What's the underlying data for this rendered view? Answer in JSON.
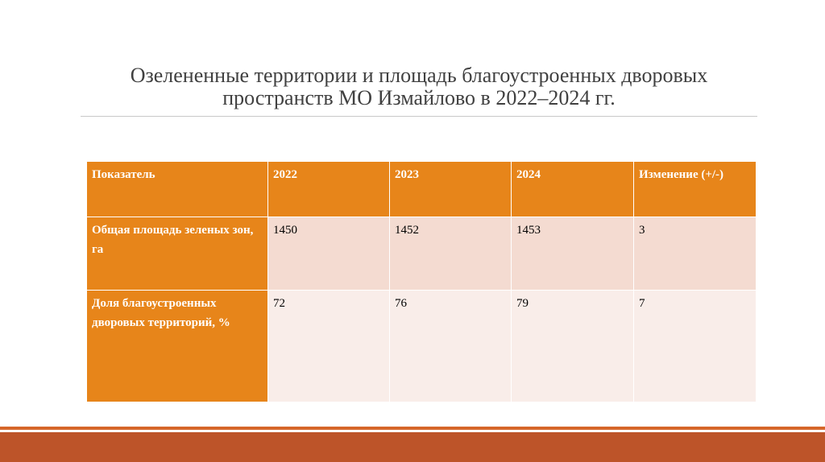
{
  "slide": {
    "title_line1": "Озелененные территории и площадь благоустроенных дворовых",
    "title_line2": "пространств МО Измайлово в 2022–2024 гг."
  },
  "table": {
    "headers": [
      "Показатель",
      "2022",
      "2023",
      "2024",
      "Изменение (+/-)"
    ],
    "rows": [
      {
        "label": "Общая площадь зеленых зон, га",
        "values": [
          "1450",
          "1452",
          "1453",
          "3"
        ]
      },
      {
        "label": "Доля благоустроенных дворовых территорий, %",
        "values": [
          "72",
          "76",
          "79",
          "7"
        ]
      }
    ]
  },
  "colors": {
    "header_orange": "#e7851a",
    "row1_fill": "#f4dbd1",
    "row2_fill": "#f9ede9",
    "footer_dark": "#bd5429",
    "footer_light": "#d6662a"
  }
}
